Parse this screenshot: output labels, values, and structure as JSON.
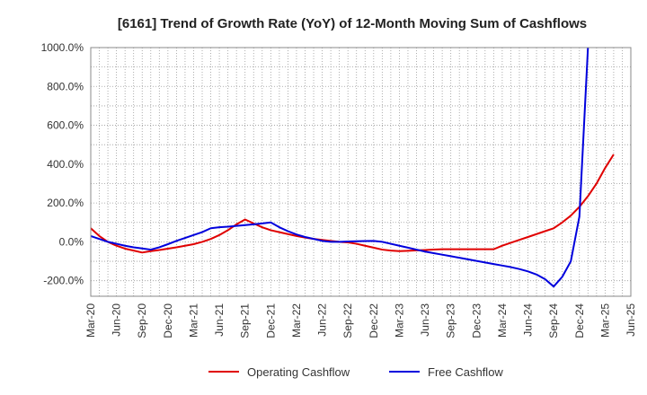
{
  "chart_data": {
    "type": "line",
    "title": "[6161]  Trend of Growth Rate (YoY) of 12-Month Moving Sum of Cashflows",
    "xlabel": "",
    "ylabel": "",
    "ylim": [
      -280,
      1000
    ],
    "y_ticks": [
      -200,
      0,
      200,
      400,
      600,
      800,
      1000
    ],
    "y_tick_labels": [
      "-200.0%",
      "0.0%",
      "200.0%",
      "400.0%",
      "600.0%",
      "800.0%",
      "1000.0%"
    ],
    "x_tick_labels": [
      "Mar-20",
      "Jun-20",
      "Sep-20",
      "Dec-20",
      "Mar-21",
      "Jun-21",
      "Sep-21",
      "Dec-21",
      "Mar-22",
      "Jun-22",
      "Sep-22",
      "Dec-22",
      "Mar-23",
      "Jun-23",
      "Sep-23",
      "Dec-23",
      "Mar-24",
      "Jun-24",
      "Sep-24",
      "Dec-24",
      "Mar-25",
      "Jun-25"
    ],
    "grid": true,
    "legend_position": "bottom",
    "colors": {
      "operating": "#e00000",
      "free": "#0000dd",
      "grid": "#9a9a9a"
    },
    "series": [
      {
        "name": "Operating Cashflow",
        "color": "#e00000",
        "values": [
          70,
          30,
          0,
          -20,
          -35,
          -45,
          -55,
          -48,
          -42,
          -35,
          -28,
          -20,
          -12,
          0,
          15,
          35,
          60,
          90,
          115,
          95,
          75,
          60,
          50,
          40,
          30,
          22,
          15,
          10,
          5,
          0,
          -3,
          -10,
          -20,
          -30,
          -40,
          -45,
          -48,
          -46,
          -44,
          -42,
          -40,
          -38,
          -38,
          -38,
          -38,
          -38,
          -38,
          -38,
          -20,
          -5,
          10,
          25,
          40,
          55,
          70,
          100,
          135,
          180,
          235,
          300,
          380,
          450
        ]
      },
      {
        "name": "Free Cashflow",
        "color": "#0000dd",
        "values": [
          30,
          15,
          0,
          -10,
          -20,
          -28,
          -34,
          -40,
          -28,
          -12,
          5,
          20,
          35,
          50,
          70,
          75,
          78,
          82,
          86,
          90,
          95,
          100,
          75,
          55,
          38,
          25,
          15,
          5,
          0,
          0,
          2,
          3,
          4,
          5,
          0,
          -10,
          -20,
          -30,
          -40,
          -50,
          -58,
          -66,
          -74,
          -82,
          -90,
          -98,
          -106,
          -114,
          -122,
          -130,
          -140,
          -152,
          -168,
          -192,
          -230,
          -180,
          -100,
          130,
          1000,
          null,
          null,
          null
        ]
      }
    ],
    "x_start_index_note": "",
    "points_per_tick": 3
  },
  "legend": {
    "operating_label": "Operating Cashflow",
    "free_label": "Free Cashflow"
  }
}
